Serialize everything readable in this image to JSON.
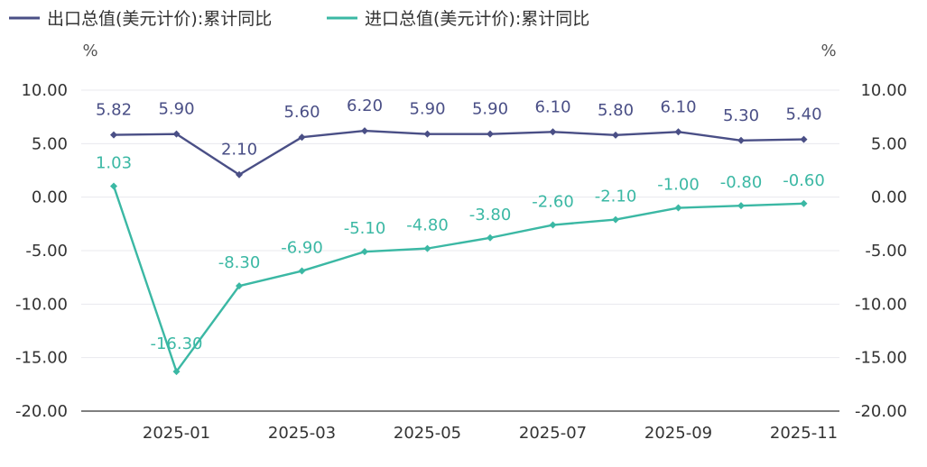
{
  "chart_data": {
    "type": "line",
    "title": "",
    "x": [
      "2024-12",
      "2025-01",
      "2025-02",
      "2025-03",
      "2025-04",
      "2025-05",
      "2025-06",
      "2025-07",
      "2025-08",
      "2025-09",
      "2025-10",
      "2025-11"
    ],
    "x_tick_labels": [
      "2025-01",
      "2025-03",
      "2025-05",
      "2025-07",
      "2025-09",
      "2025-11"
    ],
    "series": [
      {
        "name": "出口总值(美元计价):累计同比",
        "color": "#4a4f86",
        "values": [
          5.82,
          5.9,
          2.1,
          5.6,
          6.2,
          5.9,
          5.9,
          6.1,
          5.8,
          6.1,
          5.3,
          5.4
        ],
        "labels": [
          "5.82",
          "5.90",
          "2.10",
          "5.60",
          "6.20",
          "5.90",
          "5.90",
          "6.10",
          "5.80",
          "6.10",
          "5.30",
          "5.40"
        ]
      },
      {
        "name": "进口总值(美元计价):累计同比",
        "color": "#3bb8a4",
        "values": [
          1.03,
          -16.3,
          -8.3,
          -6.9,
          -5.1,
          -4.8,
          -3.8,
          -2.6,
          -2.1,
          -1.0,
          -0.8,
          -0.6
        ],
        "labels": [
          "1.03",
          "-16.30",
          "-8.30",
          "-6.90",
          "-5.10",
          "-4.80",
          "-3.80",
          "-2.60",
          "-2.10",
          "-1.00",
          "-0.80",
          "-0.60"
        ]
      }
    ],
    "ylim": [
      -20,
      10
    ],
    "y_ticks": [
      10,
      5,
      0,
      -5,
      -10,
      -15,
      -20
    ],
    "y_tick_labels": [
      "10.00",
      "5.00",
      "0.00",
      "-5.00",
      "-10.00",
      "-15.00",
      "-20.00"
    ],
    "ylabel_left": "%",
    "ylabel_right": "%",
    "legend_position": "top-left",
    "grid": true
  }
}
